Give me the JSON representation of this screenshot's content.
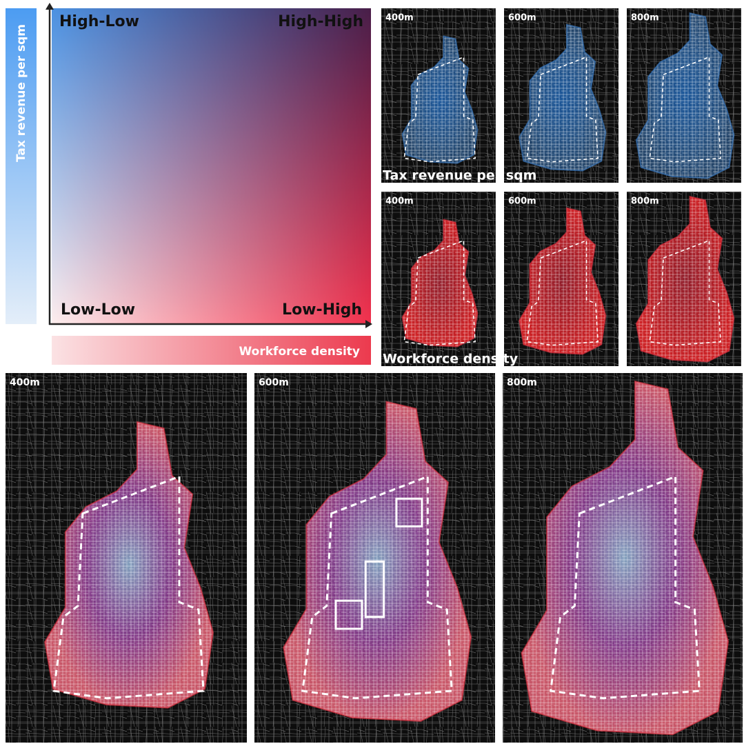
{
  "legend": {
    "y_axis_label": "Tax revenue per sqm",
    "x_axis_label": "Workforce density",
    "quadrants": {
      "top_left": "High-Low",
      "top_right": "High-High",
      "bottom_left": "Low-Low",
      "bottom_right": "Low-High"
    }
  },
  "small_maps": {
    "rows": [
      {
        "label": "Tax revenue per sqm",
        "panels": [
          "400m",
          "600m",
          "800m"
        ]
      },
      {
        "label": "Workforce density",
        "panels": [
          "400m",
          "600m",
          "800m"
        ]
      }
    ]
  },
  "large_maps": {
    "panels": [
      "400m",
      "600m",
      "800m"
    ]
  }
}
